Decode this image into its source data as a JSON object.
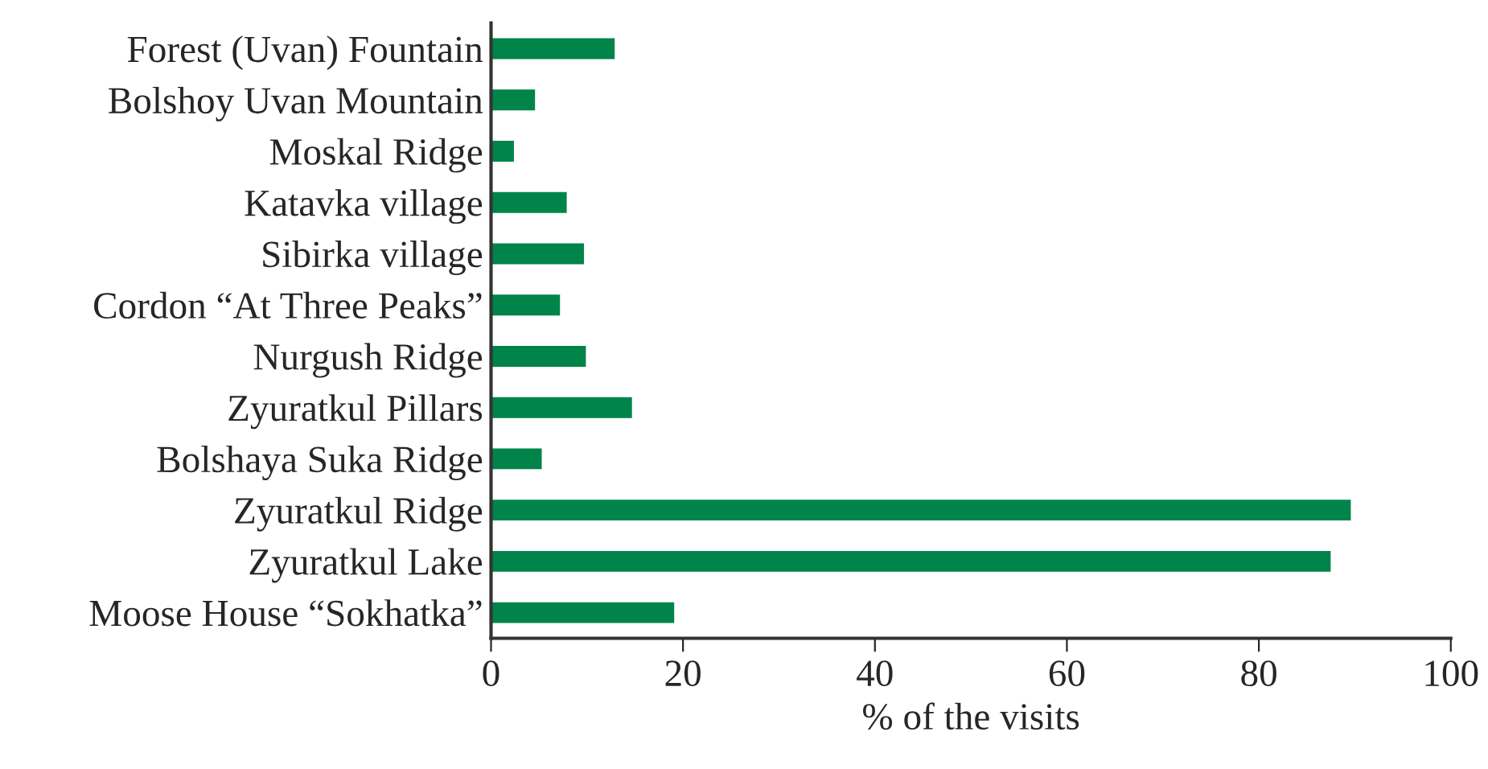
{
  "chart_data": {
    "type": "bar",
    "orientation": "horizontal",
    "xlabel": "% of the visits",
    "categories": [
      "Forest (Uvan) Fountain",
      "Bolshoy Uvan Mountain",
      "Moskal Ridge",
      "Katavka village",
      "Sibirka village",
      "Cordon “At Three Peaks”",
      "Nurgush Ridge",
      "Zyuratkul Pillars",
      "Bolshaya Suka Ridge",
      "Zyuratkul Ridge",
      "Zyuratkul Lake",
      "Moose House “Sokhatka”"
    ],
    "values": [
      13.0,
      4.7,
      2.5,
      8.0,
      9.8,
      7.3,
      10.0,
      14.8,
      5.4,
      89.7,
      87.6,
      19.2
    ],
    "color": "#00844a",
    "xlim": [
      0,
      100
    ],
    "xticks": [
      0,
      20,
      40,
      60,
      80,
      100
    ],
    "grid": false,
    "legend": false
  }
}
